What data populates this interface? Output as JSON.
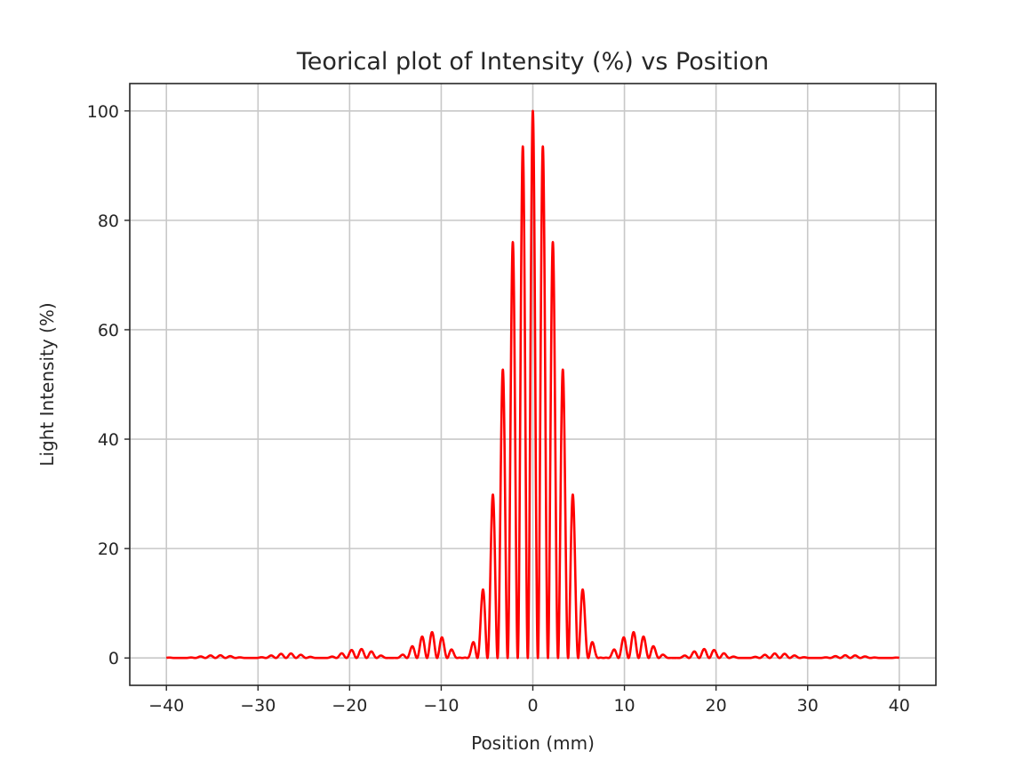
{
  "chart_data": {
    "type": "line",
    "title": "Teorical plot of Intensity (%) vs Position",
    "xlabel": "Position (mm)",
    "ylabel": "Light Intensity (%)",
    "xlim": [
      -44,
      44
    ],
    "ylim": [
      -5,
      105
    ],
    "xticks": [
      -40,
      -30,
      -20,
      -10,
      0,
      10,
      20,
      30,
      40
    ],
    "xtick_labels": [
      "−40",
      "−30",
      "−20",
      "−10",
      "0",
      "10",
      "20",
      "30",
      "40"
    ],
    "yticks": [
      0,
      20,
      40,
      60,
      80,
      100
    ],
    "ytick_labels": [
      "0",
      "20",
      "40",
      "60",
      "80",
      "100"
    ],
    "grid": true,
    "series": [
      {
        "color": "#ff0000",
        "model": "double-slit interference",
        "fringe_spacing_mm": 1.1,
        "envelope_first_zero_mm": 7.7,
        "x_range": [
          -40,
          40
        ],
        "peak_value": 100
      }
    ]
  }
}
